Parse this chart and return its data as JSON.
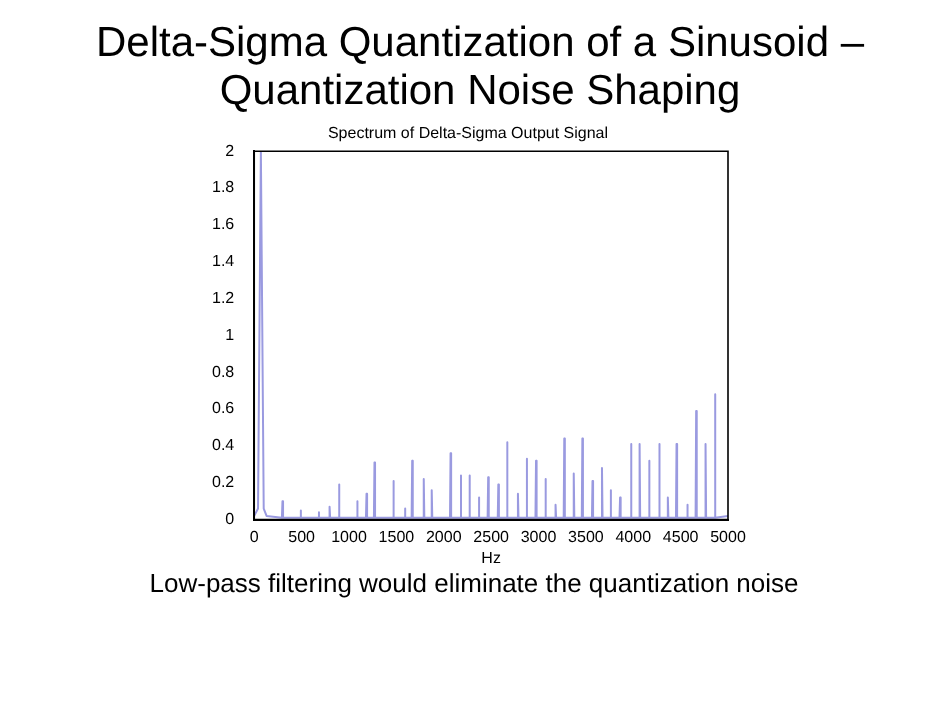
{
  "chart_data": {
    "type": "line",
    "title": "Delta-Sigma Quantization of a Sinusoid – Quantization Noise Shaping",
    "subtitle": "Spectrum of Delta-Sigma Output Signal",
    "xlabel": "Hz",
    "annotations": [
      "Low-pass filtering would eliminate the quantization noise"
    ],
    "x": [
      0,
      40,
      70,
      100,
      130,
      292,
      298,
      304,
      483,
      489,
      495,
      674,
      680,
      686,
      789,
      795,
      801,
      888,
      894,
      900,
      1080,
      1086,
      1092,
      1179,
      1185,
      1191,
      1263,
      1269,
      1275,
      1462,
      1468,
      1474,
      1584,
      1590,
      1596,
      1661,
      1667,
      1673,
      1783,
      1789,
      1795,
      1867,
      1873,
      1879,
      2066,
      2072,
      2078,
      2173,
      2179,
      2185,
      2265,
      2271,
      2277,
      2364,
      2370,
      2376,
      2463,
      2469,
      2475,
      2570,
      2576,
      2582,
      2662,
      2668,
      2674,
      2777,
      2783,
      2789,
      2869,
      2875,
      2881,
      2968,
      2974,
      2980,
      3067,
      3073,
      3079,
      3174,
      3180,
      3186,
      3266,
      3272,
      3278,
      3366,
      3372,
      3378,
      3457,
      3463,
      3469,
      3564,
      3570,
      3576,
      3664,
      3670,
      3676,
      3755,
      3761,
      3767,
      3855,
      3861,
      3867,
      3970,
      3976,
      3982,
      4061,
      4067,
      4073,
      4161,
      4167,
      4173,
      4268,
      4274,
      4280,
      4359,
      4365,
      4371,
      4451,
      4457,
      4463,
      4564,
      4570,
      4576,
      4658,
      4664,
      4670,
      4757,
      4763,
      4769,
      4856,
      4862,
      4868,
      5000
    ],
    "series": [
      {
        "color": "#9a9ae0",
        "values": [
          0.02,
          0.06,
          2,
          0.06,
          0.02,
          0.01,
          0.1,
          0.01,
          0.01,
          0.05,
          0.01,
          0.01,
          0.04,
          0.01,
          0.01,
          0.07,
          0.01,
          0.01,
          0.19,
          0.01,
          0.01,
          0.1,
          0.01,
          0.01,
          0.14,
          0.01,
          0.01,
          0.31,
          0.01,
          0.01,
          0.21,
          0.01,
          0.01,
          0.06,
          0.01,
          0.01,
          0.32,
          0.01,
          0.01,
          0.22,
          0.01,
          0.01,
          0.16,
          0.01,
          0.01,
          0.36,
          0.01,
          0.01,
          0.24,
          0.01,
          0.01,
          0.24,
          0.01,
          0.01,
          0.12,
          0.01,
          0.01,
          0.23,
          0.01,
          0.01,
          0.19,
          0.01,
          0.01,
          0.42,
          0.01,
          0.01,
          0.14,
          0.01,
          0.01,
          0.33,
          0.01,
          0.01,
          0.32,
          0.01,
          0.01,
          0.22,
          0.01,
          0.01,
          0.08,
          0.01,
          0.01,
          0.44,
          0.01,
          0.01,
          0.25,
          0.01,
          0.01,
          0.44,
          0.01,
          0.01,
          0.21,
          0.01,
          0.01,
          0.28,
          0.01,
          0.01,
          0.16,
          0.01,
          0.01,
          0.12,
          0.01,
          0.01,
          0.41,
          0.01,
          0.01,
          0.41,
          0.01,
          0.01,
          0.32,
          0.01,
          0.01,
          0.41,
          0.01,
          0.01,
          0.12,
          0.01,
          0.01,
          0.41,
          0.01,
          0.01,
          0.08,
          0.01,
          0.01,
          0.59,
          0.01,
          0.01,
          0.41,
          0.01,
          0.01,
          0.68,
          0.01,
          0.02
        ]
      }
    ],
    "xlim": [
      0,
      5000
    ],
    "xticks": [
      0,
      500,
      1000,
      1500,
      2000,
      2500,
      3000,
      3500,
      4000,
      4500,
      5000
    ],
    "ylim": [
      0,
      2
    ],
    "yticks": [
      0,
      0.2,
      0.4,
      0.6,
      0.8,
      1,
      1.2,
      1.4,
      1.6,
      1.8,
      2
    ],
    "grid": false,
    "legend": false,
    "marker": "none",
    "line_style": "solid"
  }
}
